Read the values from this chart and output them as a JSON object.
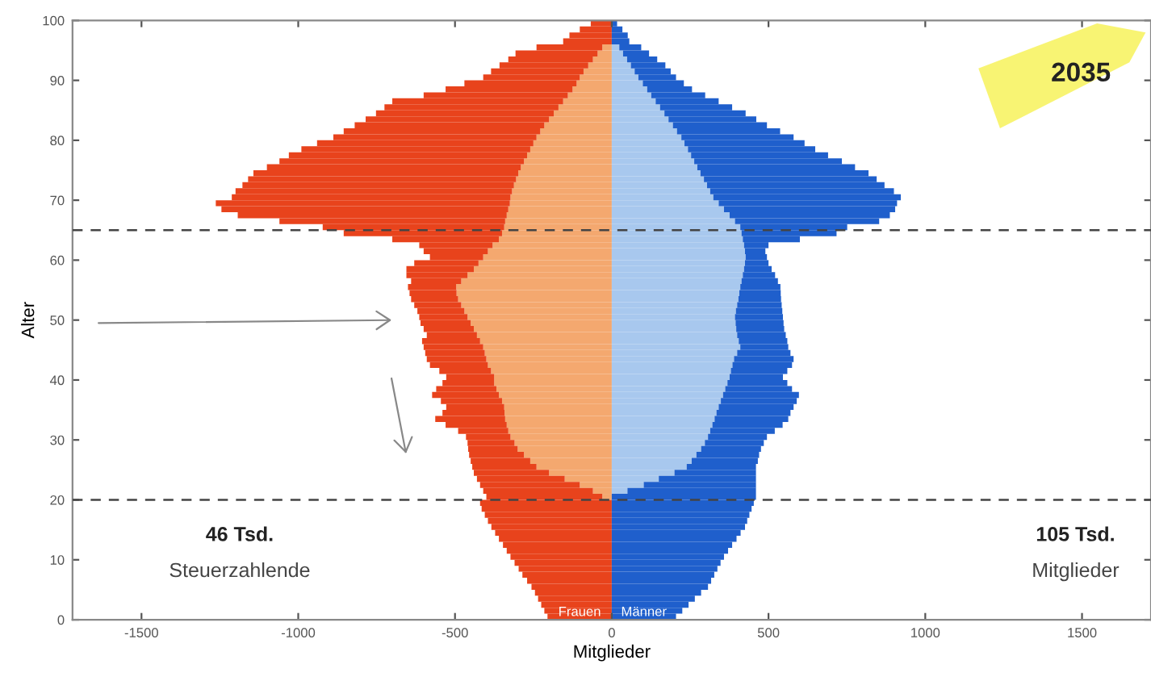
{
  "chart_data": {
    "type": "bar",
    "orientation": "horizontal",
    "stacked": true,
    "xlabel": "Mitglieder",
    "ylabel": "Alter",
    "x": [
      0,
      1,
      2,
      3,
      4,
      5,
      6,
      7,
      8,
      9,
      10,
      11,
      12,
      13,
      14,
      15,
      16,
      17,
      18,
      19,
      20,
      21,
      22,
      23,
      24,
      25,
      26,
      27,
      28,
      29,
      30,
      31,
      32,
      33,
      34,
      35,
      36,
      37,
      38,
      39,
      40,
      41,
      42,
      43,
      44,
      45,
      46,
      47,
      48,
      49,
      50,
      51,
      52,
      53,
      54,
      55,
      56,
      57,
      58,
      59,
      60,
      61,
      62,
      63,
      64,
      65,
      66,
      67,
      68,
      69,
      70,
      71,
      72,
      73,
      74,
      75,
      76,
      77,
      78,
      79,
      80,
      81,
      82,
      83,
      84,
      85,
      86,
      87,
      88,
      89,
      90,
      91,
      92,
      93,
      94,
      95,
      96,
      97,
      98,
      99
    ],
    "series": [
      {
        "color": "#f4a86f",
        "values": [
          0,
          0,
          0,
          0,
          0,
          0,
          0,
          0,
          0,
          0,
          0,
          0,
          0,
          0,
          0,
          0,
          0,
          0,
          0,
          0,
          -30,
          -60,
          -102,
          -150,
          -200,
          -240,
          -260,
          -280,
          -300,
          -310,
          -323,
          -330,
          -335,
          -340,
          -342,
          -343,
          -350,
          -360,
          -368,
          -375,
          -375,
          -385,
          -395,
          -400,
          -405,
          -410,
          -420,
          -430,
          -440,
          -450,
          -460,
          -470,
          -480,
          -490,
          -495,
          -496,
          -480,
          -460,
          -440,
          -425,
          -410,
          -395,
          -380,
          -360,
          -350,
          -343,
          -340,
          -335,
          -330,
          -325,
          -323,
          -318,
          -312,
          -305,
          -298,
          -290,
          -280,
          -270,
          -260,
          -250,
          -240,
          -228,
          -215,
          -200,
          -185,
          -170,
          -155,
          -140,
          -125,
          -112,
          -102,
          -90,
          -75,
          -60,
          -45,
          -30,
          0,
          0,
          0,
          0
        ]
      },
      {
        "name": "Frauen",
        "color": "#e8431c",
        "values": [
          -205,
          -215,
          -225,
          -235,
          -245,
          -256,
          -270,
          -285,
          -297,
          -310,
          -323,
          -335,
          -347,
          -360,
          -372,
          -384,
          -395,
          -405,
          -415,
          -420,
          -370,
          -350,
          -318,
          -280,
          -240,
          -205,
          -190,
          -175,
          -158,
          -150,
          -142,
          -160,
          -195,
          -223,
          -198,
          -185,
          -195,
          -213,
          -192,
          -165,
          -153,
          -165,
          -185,
          -190,
          -190,
          -190,
          -185,
          -160,
          -160,
          -160,
          -154,
          -150,
          -150,
          -150,
          -150,
          -154,
          -160,
          -195,
          -215,
          -205,
          -170,
          -205,
          -234,
          -340,
          -505,
          -579,
          -720,
          -858,
          -915,
          -938,
          -889,
          -882,
          -866,
          -855,
          -845,
          -810,
          -780,
          -760,
          -730,
          -690,
          -648,
          -627,
          -605,
          -585,
          -567,
          -555,
          -545,
          -460,
          -405,
          -358,
          -308,
          -295,
          -283,
          -270,
          -262,
          -210,
          -155,
          -135,
          -102,
          -67
        ]
      },
      {
        "color": "#a8c8ee",
        "values": [
          0,
          0,
          0,
          0,
          0,
          0,
          0,
          0,
          0,
          0,
          0,
          0,
          0,
          0,
          0,
          0,
          0,
          0,
          0,
          0,
          0,
          50,
          102,
          150,
          200,
          239,
          255,
          270,
          285,
          297,
          307,
          314,
          321,
          328,
          334,
          341,
          348,
          355,
          362,
          369,
          376,
          380,
          385,
          390,
          400,
          410,
          405,
          400,
          397,
          395,
          393,
          396,
          400,
          404,
          407,
          410,
          414,
          418,
          422,
          425,
          427,
          425,
          422,
          418,
          414,
          410,
          393,
          376,
          358,
          341,
          324,
          314,
          304,
          294,
          283,
          273,
          263,
          253,
          243,
          232,
          222,
          208,
          195,
          181,
          168,
          154,
          140,
          126,
          113,
          99,
          85,
          73,
          61,
          49,
          36,
          24,
          0,
          0,
          0,
          0
        ]
      },
      {
        "name": "Männer",
        "color": "#1f5fcc",
        "values": [
          205,
          225,
          245,
          265,
          285,
          307,
          317,
          327,
          337,
          347,
          358,
          371,
          384,
          398,
          411,
          425,
          432,
          439,
          446,
          453,
          460,
          410,
          358,
          310,
          260,
          221,
          211,
          200,
          191,
          188,
          188,
          206,
          224,
          235,
          236,
          239,
          242,
          242,
          213,
          191,
          170,
          180,
          190,
          190,
          170,
          153,
          155,
          155,
          153,
          153,
          153,
          148,
          142,
          136,
          132,
          128,
          116,
          103,
          88,
          75,
          68,
          65,
          78,
          182,
          303,
          341,
          460,
          511,
          546,
          569,
          598,
          586,
          566,
          551,
          536,
          503,
          471,
          437,
          406,
          383,
          358,
          329,
          300,
          280,
          259,
          230,
          201,
          172,
          143,
          131,
          120,
          115,
          110,
          96,
          83,
          70,
          56,
          51,
          34,
          17
        ]
      }
    ],
    "xlim": [
      -1720,
      1720
    ],
    "xticks": [
      -1500,
      -1000,
      -500,
      0,
      500,
      1000,
      1500
    ],
    "ylim": [
      0,
      100
    ],
    "yticks": [
      0,
      10,
      20,
      30,
      40,
      50,
      60,
      70,
      80,
      90,
      100
    ],
    "ref_lines": [
      {
        "axis": "y",
        "value": 65,
        "color": "#444444",
        "line_style": "dashed"
      },
      {
        "axis": "y",
        "value": 20,
        "color": "#444444",
        "line_style": "dashed"
      }
    ],
    "annotations": [
      "2035",
      "46 Tsd.",
      "Steuerzahlende",
      "105 Tsd.",
      "Mitglieder"
    ],
    "grid": false,
    "legend": false
  }
}
